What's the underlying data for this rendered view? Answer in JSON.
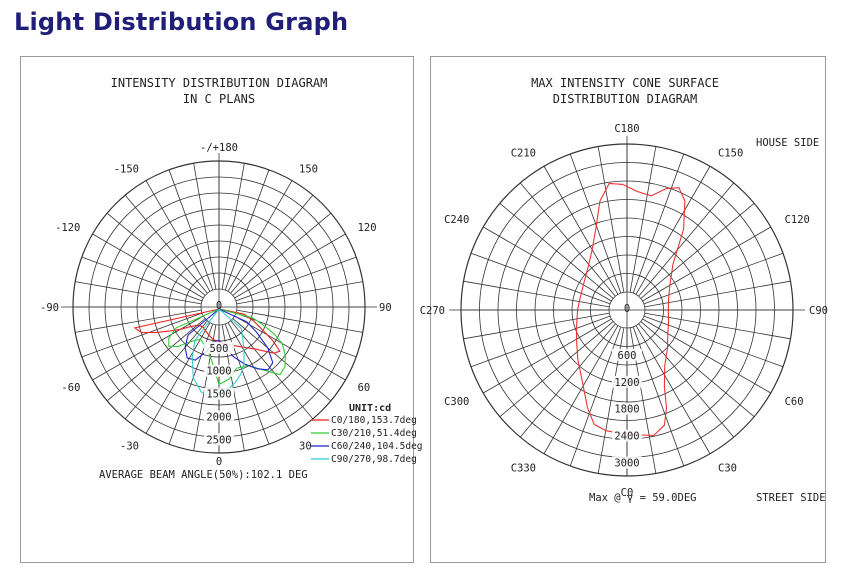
{
  "page": {
    "title": "Light  Distribution  Graph"
  },
  "chart_data": [
    {
      "type": "polar-line",
      "title": "INTENSITY DISTRIBUTION DIAGRAM",
      "subtitle": "IN C PLANS",
      "angle_labels": [
        {
          "angle": 180,
          "text": "-/+180"
        },
        {
          "angle": 150,
          "text": "150"
        },
        {
          "angle": -150,
          "text": "-150"
        },
        {
          "angle": 120,
          "text": "120"
        },
        {
          "angle": -120,
          "text": "-120"
        },
        {
          "angle": 90,
          "text": "90"
        },
        {
          "angle": -90,
          "text": "-90"
        },
        {
          "angle": 60,
          "text": "60"
        },
        {
          "angle": -60,
          "text": "-60"
        },
        {
          "angle": 30,
          "text": "30"
        },
        {
          "angle": -30,
          "text": "-30"
        },
        {
          "angle": 0,
          "text": "0"
        }
      ],
      "radial_labels": [
        {
          "value": 0,
          "text": "0"
        },
        {
          "value": 500,
          "text": "500"
        },
        {
          "value": 1000,
          "text": "1000"
        },
        {
          "value": 1500,
          "text": "1500"
        },
        {
          "value": 2000,
          "text": "2000"
        },
        {
          "value": 2500,
          "text": "2500"
        }
      ],
      "rmax": 2800,
      "unit_label": "UNIT:cd",
      "series": [
        {
          "name": "C0/180,153.7deg",
          "color": "#ee2222",
          "points": [
            [
              -76,
              1500
            ],
            [
              -72,
              1400
            ],
            [
              -68,
              1100
            ],
            [
              -64,
              800
            ],
            [
              -60,
              580
            ],
            [
              -56,
              380
            ],
            [
              -50,
              230
            ],
            [
              -40,
              160
            ],
            [
              -30,
              200
            ],
            [
              -20,
              260
            ],
            [
              -10,
              330
            ],
            [
              0,
              360
            ],
            [
              10,
              420
            ],
            [
              20,
              500
            ],
            [
              30,
              620
            ],
            [
              40,
              800
            ],
            [
              50,
              1180
            ],
            [
              54,
              1250
            ],
            [
              58,
              1000
            ],
            [
              62,
              700
            ],
            [
              68,
              420
            ],
            [
              74,
              180
            ]
          ]
        },
        {
          "name": "C30/210,51.4deg",
          "color": "#33cc33",
          "points": [
            [
              -64,
              650
            ],
            [
              -58,
              900
            ],
            [
              -52,
              1000
            ],
            [
              -46,
              850
            ],
            [
              -40,
              600
            ],
            [
              -30,
              420
            ],
            [
              -20,
              500
            ],
            [
              -10,
              700
            ],
            [
              0,
              1300
            ],
            [
              8,
              1200
            ],
            [
              16,
              1000
            ],
            [
              26,
              1030
            ],
            [
              34,
              1250
            ],
            [
              42,
              1600
            ],
            [
              48,
              1550
            ],
            [
              54,
              1400
            ],
            [
              60,
              1200
            ],
            [
              64,
              950
            ],
            [
              68,
              650
            ],
            [
              72,
              380
            ]
          ]
        },
        {
          "name": "C60/240,104.5deg",
          "color": "#2222cc",
          "points": [
            [
              -48,
              520
            ],
            [
              -40,
              760
            ],
            [
              -32,
              920
            ],
            [
              -24,
              880
            ],
            [
              -16,
              620
            ],
            [
              -8,
              380
            ],
            [
              0,
              330
            ],
            [
              8,
              470
            ],
            [
              16,
              730
            ],
            [
              24,
              970
            ],
            [
              32,
              1200
            ],
            [
              38,
              1350
            ],
            [
              44,
              1300
            ],
            [
              50,
              1000
            ],
            [
              56,
              600
            ],
            [
              62,
              300
            ]
          ]
        },
        {
          "name": "C90/270,98.7deg",
          "color": "#33cccc",
          "points": [
            [
              -36,
              500
            ],
            [
              -28,
              850
            ],
            [
              -20,
              1250
            ],
            [
              -12,
              1500
            ],
            [
              -6,
              1580
            ],
            [
              0,
              1500
            ],
            [
              6,
              1420
            ],
            [
              12,
              1300
            ],
            [
              18,
              1150
            ],
            [
              24,
              950
            ],
            [
              30,
              700
            ],
            [
              38,
              450
            ],
            [
              46,
              280
            ]
          ]
        }
      ],
      "footer": "AVERAGE BEAM ANGLE(50%):102.1 DEG"
    },
    {
      "type": "polar-line",
      "title": "MAX INTENSITY CONE SURFACE",
      "subtitle": "DISTRIBUTION DIAGRAM",
      "angle_labels": [
        {
          "angle": 180,
          "text": "C180"
        },
        {
          "angle": 150,
          "text": "C150"
        },
        {
          "angle": 210,
          "text": "C210"
        },
        {
          "angle": 120,
          "text": "C120"
        },
        {
          "angle": 240,
          "text": "C240"
        },
        {
          "angle": 90,
          "text": "C90"
        },
        {
          "angle": 270,
          "text": "C270"
        },
        {
          "angle": 60,
          "text": "C60"
        },
        {
          "angle": 300,
          "text": "C300"
        },
        {
          "angle": 30,
          "text": "C30"
        },
        {
          "angle": 330,
          "text": "C330"
        },
        {
          "angle": 0,
          "text": "C0"
        }
      ],
      "radial_labels": [
        {
          "value": 0,
          "text": "0"
        },
        {
          "value": 600,
          "text": "600"
        },
        {
          "value": 1200,
          "text": "1200"
        },
        {
          "value": 1800,
          "text": "1800"
        },
        {
          "value": 2400,
          "text": "2400"
        },
        {
          "value": 3000,
          "text": "3000"
        }
      ],
      "rmax": 3300,
      "series": [
        {
          "name": "",
          "color": "#ee3333",
          "points": [
            [
              0,
              2350
            ],
            [
              6,
              2400
            ],
            [
              12,
              2460
            ],
            [
              18,
              2300
            ],
            [
              22,
              1950
            ],
            [
              26,
              1500
            ],
            [
              34,
              1100
            ],
            [
              46,
              850
            ],
            [
              60,
              650
            ],
            [
              75,
              560
            ],
            [
              90,
              520
            ],
            [
              105,
              560
            ],
            [
              120,
              700
            ],
            [
              135,
              1050
            ],
            [
              145,
              1800
            ],
            [
              152,
              2350
            ],
            [
              157,
              2560
            ],
            [
              162,
              2450
            ],
            [
              168,
              2200
            ],
            [
              175,
              2250
            ],
            [
              182,
              2400
            ],
            [
              188,
              2450
            ],
            [
              194,
              2100
            ],
            [
              200,
              1600
            ],
            [
              210,
              1150
            ],
            [
              225,
              850
            ],
            [
              240,
              720
            ],
            [
              255,
              680
            ],
            [
              270,
              700
            ],
            [
              285,
              760
            ],
            [
              300,
              900
            ],
            [
              315,
              1150
            ],
            [
              330,
              1550
            ],
            [
              338,
              1950
            ],
            [
              344,
              2250
            ],
            [
              350,
              2330
            ],
            [
              356,
              2350
            ],
            [
              360,
              2350
            ]
          ]
        }
      ],
      "corner_labels": {
        "house_side": "HOUSE SIDE",
        "street_side": "STREET SIDE"
      },
      "footer": "Max @ γ  = 59.0DEG"
    }
  ]
}
